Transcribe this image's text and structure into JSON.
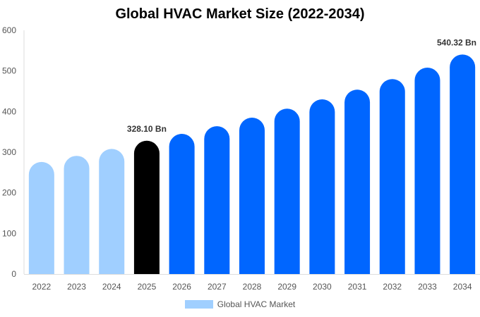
{
  "chart_data": {
    "type": "bar",
    "title": "Global HVAC Market Size (2022-2034)",
    "categories": [
      "2022",
      "2023",
      "2024",
      "2025",
      "2026",
      "2027",
      "2028",
      "2029",
      "2030",
      "2031",
      "2032",
      "2033",
      "2034"
    ],
    "series": [
      {
        "name": "Global HVAC Market",
        "values": [
          276,
          291,
          308,
          328.1,
          345,
          364,
          385,
          407,
          430,
          454,
          480,
          508,
          540.32
        ]
      }
    ],
    "data_labels": {
      "3": "328.10 Bn",
      "12": "540.32 Bn"
    },
    "ylim": [
      0,
      600
    ],
    "yticks": [
      0,
      100,
      200,
      300,
      400,
      500,
      600
    ],
    "grid": false,
    "legend": "bottom",
    "colors": {
      "historical": "#a0cfff",
      "current": "#000000",
      "forecast": "#0066ff"
    },
    "bar_color_groups": [
      "historical",
      "historical",
      "historical",
      "current",
      "forecast",
      "forecast",
      "forecast",
      "forecast",
      "forecast",
      "forecast",
      "forecast",
      "forecast",
      "forecast"
    ]
  }
}
